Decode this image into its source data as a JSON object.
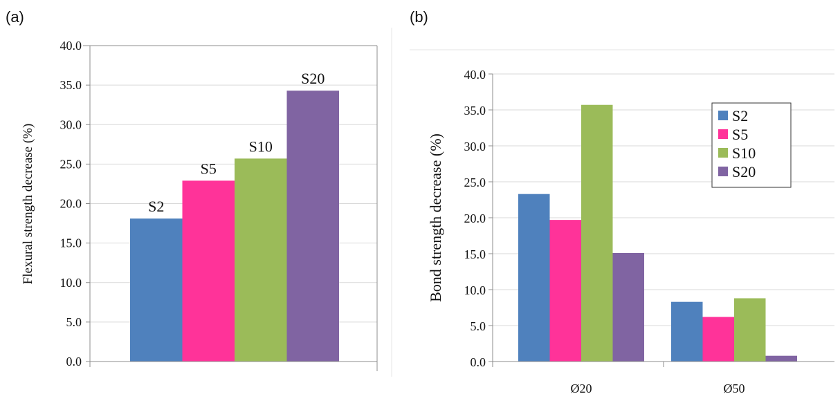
{
  "figure": {
    "panels": [
      {
        "label": "(a)",
        "ylabel": "Flexural strength decrease (%)",
        "yticks": [
          "0.0",
          "5.0",
          "10.0",
          "15.0",
          "20.0",
          "25.0",
          "30.0",
          "35.0",
          "40.0"
        ]
      },
      {
        "label": "(b)",
        "ylabel": "Bond strength decrease (%)",
        "yticks": [
          "0.0",
          "5.0",
          "10.0",
          "15.0",
          "20.0",
          "25.0",
          "30.0",
          "35.0",
          "40.0"
        ],
        "legend": [
          "S2",
          "S5",
          "S10",
          "S20"
        ]
      }
    ]
  },
  "colors": {
    "S2": "#4F81BD",
    "S5": "#FF3399",
    "S10": "#9BBB59",
    "S20": "#8064A2"
  },
  "chart_data": [
    {
      "type": "bar",
      "title": "",
      "xlabel": "",
      "ylabel": "Flexural strength decrease (%)",
      "ylim": [
        0,
        40
      ],
      "grid": true,
      "legend": "none",
      "categories": [
        "S2",
        "S5",
        "S10",
        "S20"
      ],
      "values": [
        18.1,
        22.9,
        25.7,
        34.3
      ],
      "data_labels": [
        "S2",
        "S5",
        "S10",
        "S20"
      ]
    },
    {
      "type": "bar",
      "title": "",
      "xlabel": "",
      "ylabel": "Bond strength decrease (%)",
      "ylim": [
        0,
        40
      ],
      "grid": true,
      "legend": "top-right",
      "categories": [
        "Ø20",
        "Ø50"
      ],
      "series": [
        {
          "name": "S2",
          "values": [
            23.3,
            8.3
          ]
        },
        {
          "name": "S5",
          "values": [
            19.7,
            6.2
          ]
        },
        {
          "name": "S10",
          "values": [
            35.7,
            8.8
          ]
        },
        {
          "name": "S20",
          "values": [
            15.1,
            0.8
          ]
        }
      ]
    }
  ]
}
